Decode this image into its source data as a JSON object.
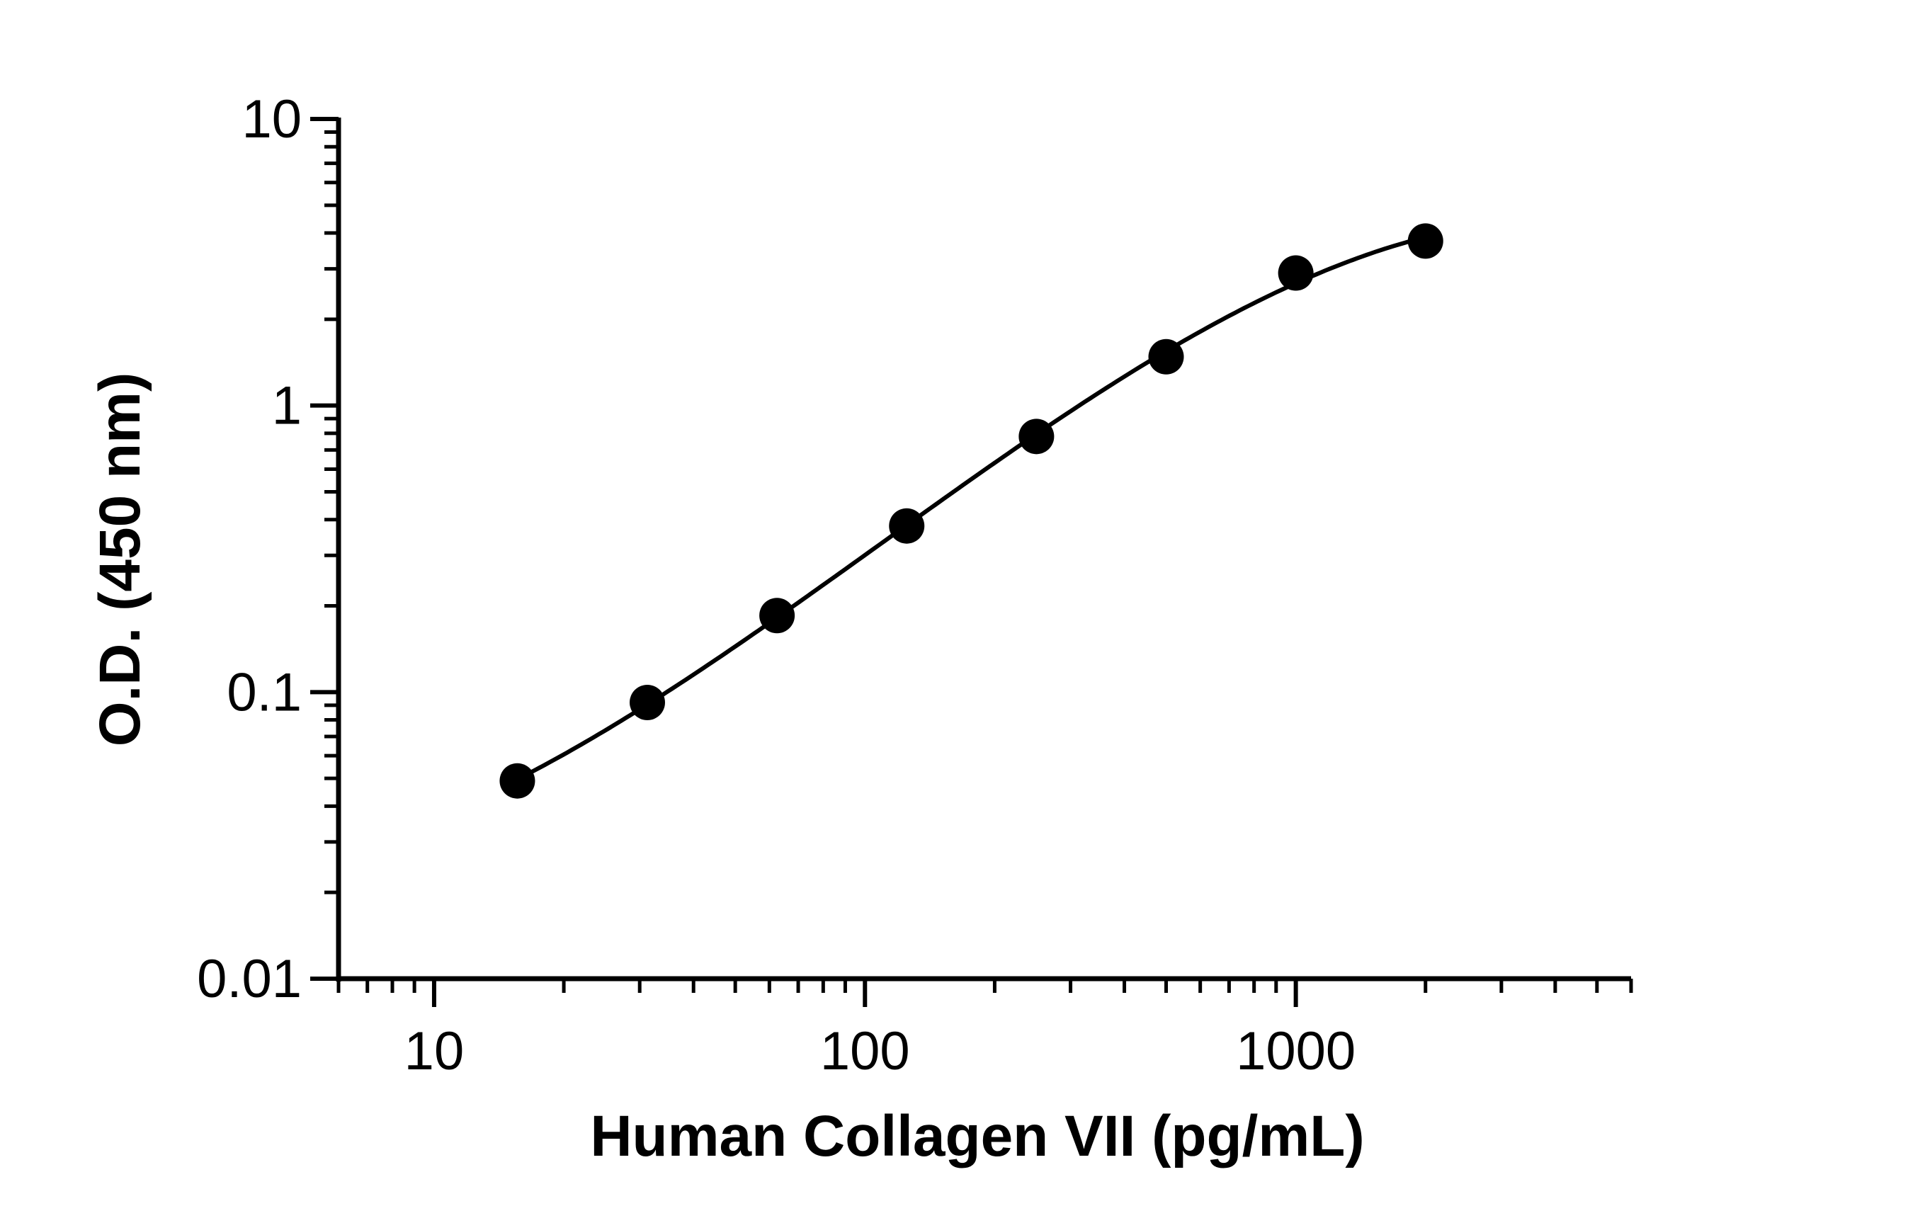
{
  "chart_data": {
    "type": "scatter",
    "title": "",
    "xlabel": "Human Collagen VII (pg/mL)",
    "ylabel": "O.D. (450 nm)",
    "x_scale": "log",
    "y_scale": "log",
    "xlim": [
      6,
      6000
    ],
    "ylim": [
      0.01,
      10
    ],
    "x_tick_labels": [
      "10",
      "100",
      "1000"
    ],
    "y_tick_labels": [
      "0.01",
      "0.1",
      "1",
      "10"
    ],
    "grid": false,
    "legend": "none",
    "series": [
      {
        "x": [
          15.6,
          31.25,
          62.5,
          125,
          250,
          500,
          1000,
          2000
        ],
        "y": [
          0.049,
          0.092,
          0.185,
          0.38,
          0.78,
          1.48,
          2.9,
          3.75
        ]
      }
    ],
    "fit_curve": true,
    "colors": {
      "marker": "#000000",
      "curve": "#000000",
      "axis": "#000000"
    }
  }
}
